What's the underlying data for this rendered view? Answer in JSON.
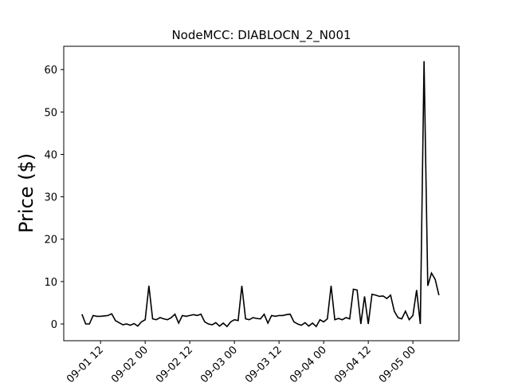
{
  "chart_data": {
    "type": "line",
    "title": "NodeMCC: DIABLOCN_2_N001",
    "y_label": "Price ($)",
    "x": [
      7,
      8,
      9,
      10,
      11,
      12,
      13,
      14,
      15,
      16,
      17,
      18,
      19,
      20,
      21,
      22,
      23,
      24,
      25,
      26,
      27,
      28,
      29,
      30,
      31,
      32,
      33,
      34,
      35,
      36,
      37,
      38,
      39,
      40,
      41,
      42,
      43,
      44,
      45,
      46,
      47,
      48,
      49,
      50,
      51,
      52,
      53,
      54,
      55,
      56,
      57,
      58,
      59,
      60,
      61,
      62,
      63,
      64,
      65,
      66,
      67,
      68,
      69,
      70,
      71,
      72,
      73,
      74,
      75,
      76,
      77,
      78,
      79,
      80,
      81,
      82,
      83,
      84,
      85,
      86,
      87,
      88,
      89,
      90,
      91,
      92,
      93,
      94,
      95,
      96,
      97,
      98,
      99,
      100,
      101,
      102,
      103
    ],
    "series": [
      {
        "color": "#000000",
        "values": [
          2.3,
          0,
          0,
          2.0,
          1.8,
          1.8,
          1.9,
          2.0,
          2.4,
          0.8,
          0.3,
          -0.2,
          0,
          -0.3,
          0.1,
          -0.5,
          0.5,
          1.0,
          9.0,
          1.2,
          1.0,
          1.5,
          1.2,
          1.0,
          1.5,
          2.3,
          0.2,
          2.0,
          1.8,
          2.0,
          2.2,
          2.0,
          2.3,
          0.5,
          0,
          -0.2,
          0.3,
          -0.5,
          0.2,
          -0.6,
          0.5,
          1.0,
          0.8,
          9.0,
          1.2,
          1.0,
          1.5,
          1.3,
          1.2,
          2.3,
          0.2,
          2.0,
          1.8,
          2.0,
          2.0,
          2.2,
          2.3,
          0.5,
          0,
          -0.3,
          0.3,
          -0.5,
          0.2,
          -0.6,
          1.0,
          0.5,
          1.2,
          9.0,
          1.0,
          1.3,
          1.0,
          1.5,
          1.2,
          8.2,
          8.0,
          0,
          6.5,
          0,
          7.0,
          6.8,
          6.5,
          6.6,
          6.0,
          6.8,
          3.0,
          1.5,
          1.2,
          3.0,
          1.0,
          2.0,
          8.0,
          0,
          62.0,
          9.0,
          12.0,
          10.5,
          6.8
        ]
      }
    ],
    "xlim": [
      2.1,
      108.4
    ],
    "xticks": [
      {
        "value": 12,
        "label": "09-01 12"
      },
      {
        "value": 24,
        "label": "09-02 00"
      },
      {
        "value": 36,
        "label": "09-02 12"
      },
      {
        "value": 48,
        "label": "09-03 00"
      },
      {
        "value": 60,
        "label": "09-03 12"
      },
      {
        "value": 72,
        "label": "09-04 00"
      },
      {
        "value": 84,
        "label": "09-04 12"
      },
      {
        "value": 96,
        "label": "09-05 00"
      }
    ],
    "ylim": [
      -3.95,
      65.5
    ],
    "yticks": [
      0,
      10,
      20,
      30,
      40,
      50,
      60
    ]
  }
}
